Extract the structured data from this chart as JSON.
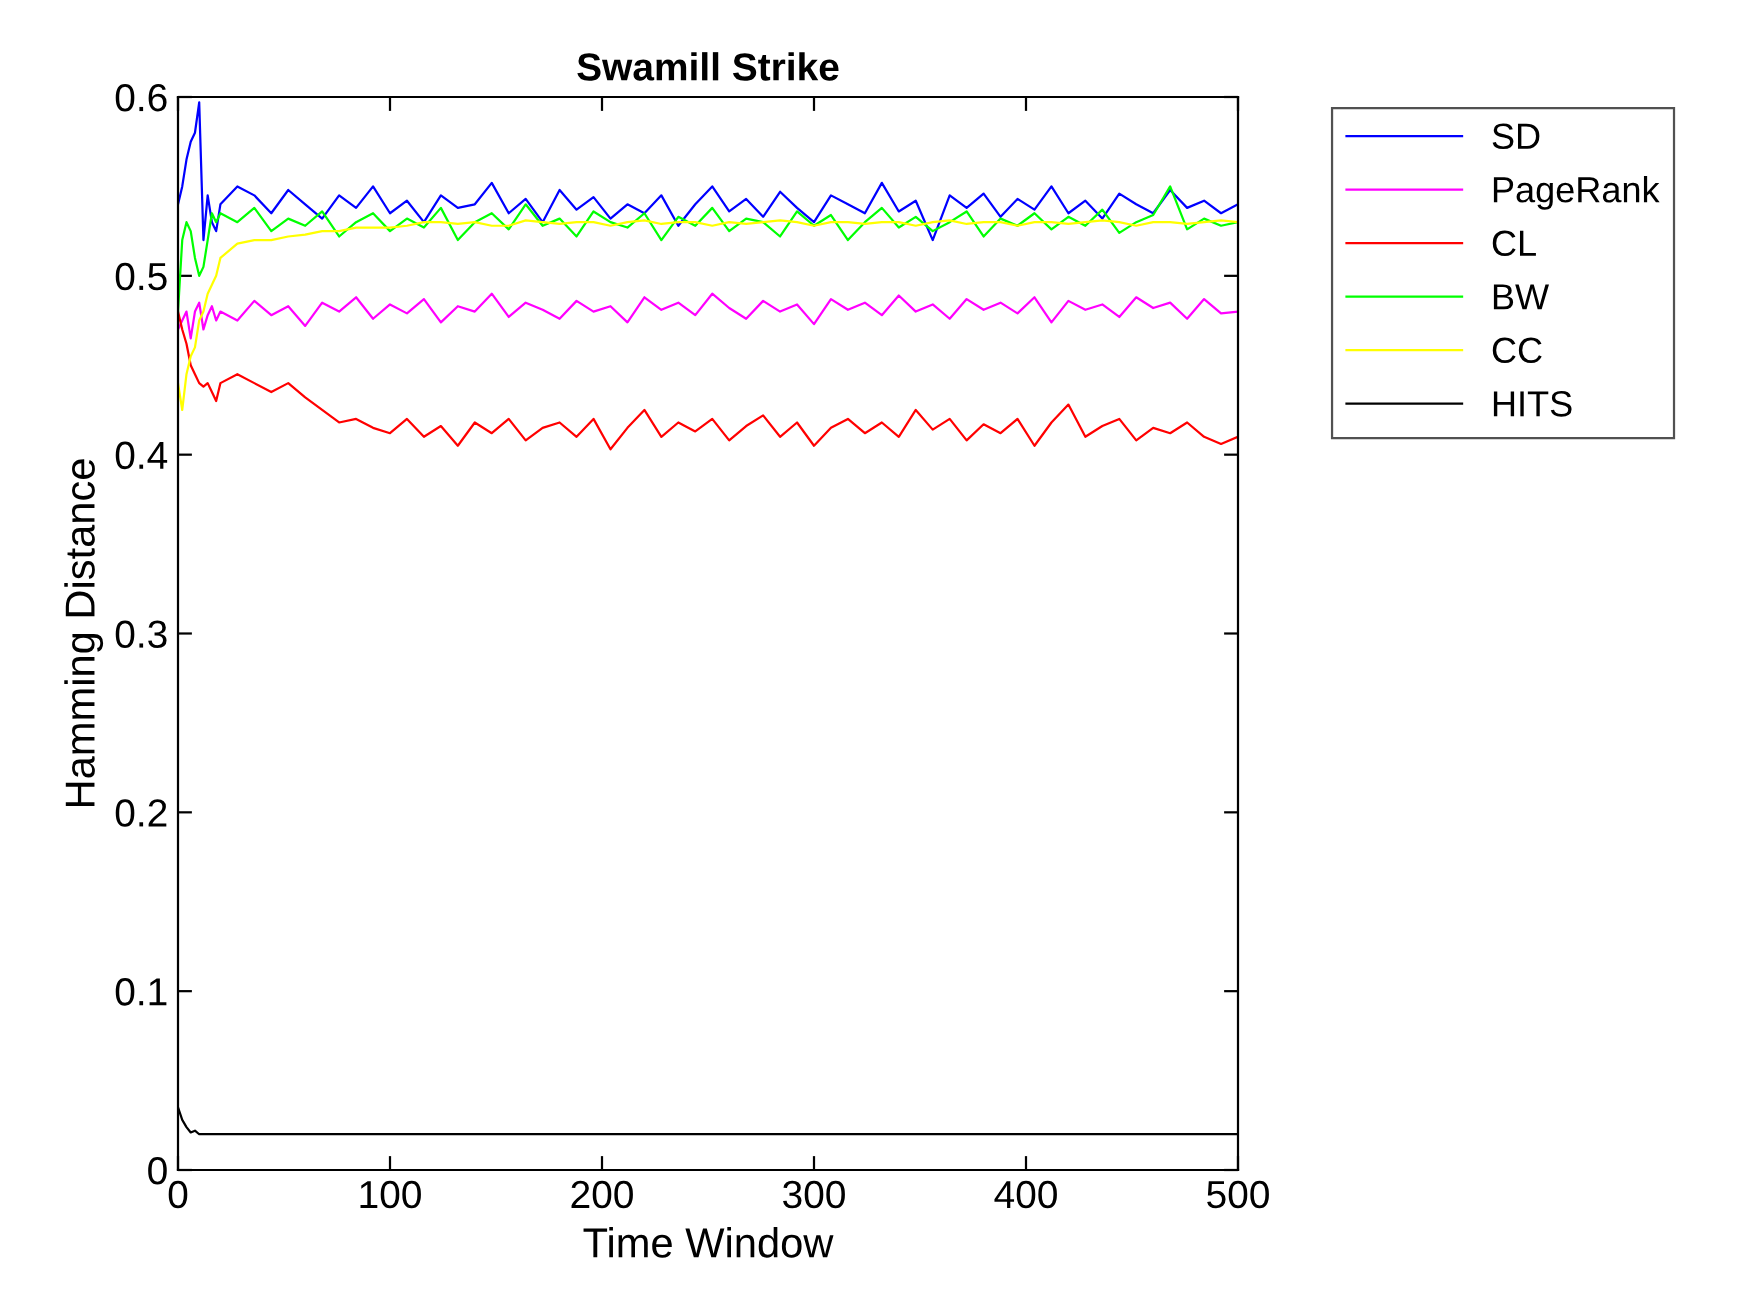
{
  "chart_data": {
    "type": "line",
    "title": "Swamill Strike",
    "xlabel": "Time Window",
    "ylabel": "Hamming Distance",
    "x": [
      0,
      2,
      4,
      6,
      8,
      10,
      12,
      14,
      16,
      18,
      20,
      28,
      36,
      44,
      52,
      60,
      68,
      76,
      84,
      92,
      100,
      108,
      116,
      124,
      132,
      140,
      148,
      156,
      164,
      172,
      180,
      188,
      196,
      204,
      212,
      220,
      228,
      236,
      244,
      252,
      260,
      268,
      276,
      284,
      292,
      300,
      308,
      316,
      324,
      332,
      340,
      348,
      356,
      364,
      372,
      380,
      388,
      396,
      404,
      412,
      420,
      428,
      436,
      444,
      452,
      460,
      468,
      476,
      484,
      492,
      500
    ],
    "series": [
      {
        "name": "SD",
        "color": "#0000ff",
        "values": [
          0.54,
          0.55,
          0.565,
          0.575,
          0.58,
          0.597,
          0.52,
          0.545,
          0.53,
          0.525,
          0.54,
          0.55,
          0.545,
          0.535,
          0.548,
          0.54,
          0.532,
          0.545,
          0.538,
          0.55,
          0.535,
          0.542,
          0.53,
          0.545,
          0.538,
          0.54,
          0.552,
          0.535,
          0.543,
          0.53,
          0.548,
          0.537,
          0.544,
          0.532,
          0.54,
          0.535,
          0.545,
          0.528,
          0.54,
          0.55,
          0.536,
          0.543,
          0.533,
          0.547,
          0.538,
          0.53,
          0.545,
          0.54,
          0.535,
          0.552,
          0.536,
          0.542,
          0.52,
          0.545,
          0.538,
          0.546,
          0.533,
          0.543,
          0.537,
          0.55,
          0.535,
          0.542,
          0.532,
          0.546,
          0.54,
          0.535,
          0.548,
          0.538,
          0.542,
          0.535,
          0.54
        ]
      },
      {
        "name": "PageRank",
        "color": "#ff00ff",
        "values": [
          0.47,
          0.475,
          0.48,
          0.465,
          0.48,
          0.485,
          0.47,
          0.478,
          0.483,
          0.475,
          0.48,
          0.475,
          0.486,
          0.478,
          0.483,
          0.472,
          0.485,
          0.48,
          0.488,
          0.476,
          0.484,
          0.479,
          0.487,
          0.474,
          0.483,
          0.48,
          0.49,
          0.477,
          0.485,
          0.481,
          0.476,
          0.486,
          0.48,
          0.483,
          0.474,
          0.488,
          0.481,
          0.485,
          0.478,
          0.49,
          0.482,
          0.476,
          0.486,
          0.48,
          0.484,
          0.473,
          0.487,
          0.481,
          0.485,
          0.478,
          0.489,
          0.48,
          0.484,
          0.476,
          0.487,
          0.481,
          0.485,
          0.479,
          0.488,
          0.474,
          0.486,
          0.481,
          0.484,
          0.477,
          0.488,
          0.482,
          0.485,
          0.476,
          0.487,
          0.479,
          0.48
        ]
      },
      {
        "name": "CL",
        "color": "#ff0000",
        "values": [
          0.48,
          0.47,
          0.462,
          0.45,
          0.445,
          0.44,
          0.438,
          0.44,
          0.435,
          0.43,
          0.44,
          0.445,
          0.44,
          0.435,
          0.44,
          0.432,
          0.425,
          0.418,
          0.42,
          0.415,
          0.412,
          0.42,
          0.41,
          0.416,
          0.405,
          0.418,
          0.412,
          0.42,
          0.408,
          0.415,
          0.418,
          0.41,
          0.42,
          0.403,
          0.415,
          0.425,
          0.41,
          0.418,
          0.413,
          0.42,
          0.408,
          0.416,
          0.422,
          0.41,
          0.418,
          0.405,
          0.415,
          0.42,
          0.412,
          0.418,
          0.41,
          0.425,
          0.414,
          0.42,
          0.408,
          0.417,
          0.412,
          0.42,
          0.405,
          0.418,
          0.428,
          0.41,
          0.416,
          0.42,
          0.408,
          0.415,
          0.412,
          0.418,
          0.41,
          0.406,
          0.41
        ]
      },
      {
        "name": "BW",
        "color": "#00ff00",
        "values": [
          0.48,
          0.52,
          0.53,
          0.525,
          0.51,
          0.5,
          0.505,
          0.52,
          0.535,
          0.53,
          0.535,
          0.53,
          0.538,
          0.525,
          0.532,
          0.528,
          0.536,
          0.522,
          0.53,
          0.535,
          0.525,
          0.532,
          0.527,
          0.538,
          0.52,
          0.53,
          0.535,
          0.526,
          0.54,
          0.528,
          0.532,
          0.522,
          0.536,
          0.53,
          0.527,
          0.535,
          0.52,
          0.533,
          0.528,
          0.538,
          0.525,
          0.532,
          0.53,
          0.522,
          0.536,
          0.528,
          0.534,
          0.52,
          0.53,
          0.538,
          0.527,
          0.533,
          0.525,
          0.53,
          0.536,
          0.522,
          0.532,
          0.528,
          0.535,
          0.526,
          0.533,
          0.528,
          0.537,
          0.524,
          0.53,
          0.534,
          0.55,
          0.526,
          0.532,
          0.528,
          0.53
        ]
      },
      {
        "name": "CC",
        "color": "#ffff00",
        "values": [
          0.44,
          0.425,
          0.445,
          0.455,
          0.46,
          0.475,
          0.48,
          0.49,
          0.495,
          0.5,
          0.51,
          0.518,
          0.52,
          0.52,
          0.522,
          0.523,
          0.525,
          0.525,
          0.527,
          0.527,
          0.527,
          0.528,
          0.53,
          0.53,
          0.529,
          0.53,
          0.528,
          0.528,
          0.531,
          0.53,
          0.529,
          0.53,
          0.53,
          0.528,
          0.53,
          0.531,
          0.529,
          0.53,
          0.53,
          0.528,
          0.53,
          0.529,
          0.53,
          0.531,
          0.53,
          0.528,
          0.53,
          0.53,
          0.529,
          0.53,
          0.53,
          0.528,
          0.53,
          0.531,
          0.529,
          0.53,
          0.53,
          0.528,
          0.53,
          0.53,
          0.529,
          0.53,
          0.531,
          0.53,
          0.528,
          0.53,
          0.53,
          0.529,
          0.53,
          0.531,
          0.53
        ]
      },
      {
        "name": "HITS",
        "color": "#000000",
        "x": [
          0,
          2,
          4,
          6,
          8,
          10,
          500
        ],
        "values": [
          0.035,
          0.028,
          0.024,
          0.021,
          0.022,
          0.02,
          0.02
        ]
      }
    ],
    "xlim": [
      0,
      500
    ],
    "xticks": [
      0,
      100,
      200,
      300,
      400,
      500
    ],
    "ylim": [
      0,
      0.6
    ],
    "yticks": [
      0,
      0.1,
      0.2,
      0.3,
      0.4,
      0.5,
      0.6
    ],
    "grid": false,
    "legend": "top right"
  }
}
